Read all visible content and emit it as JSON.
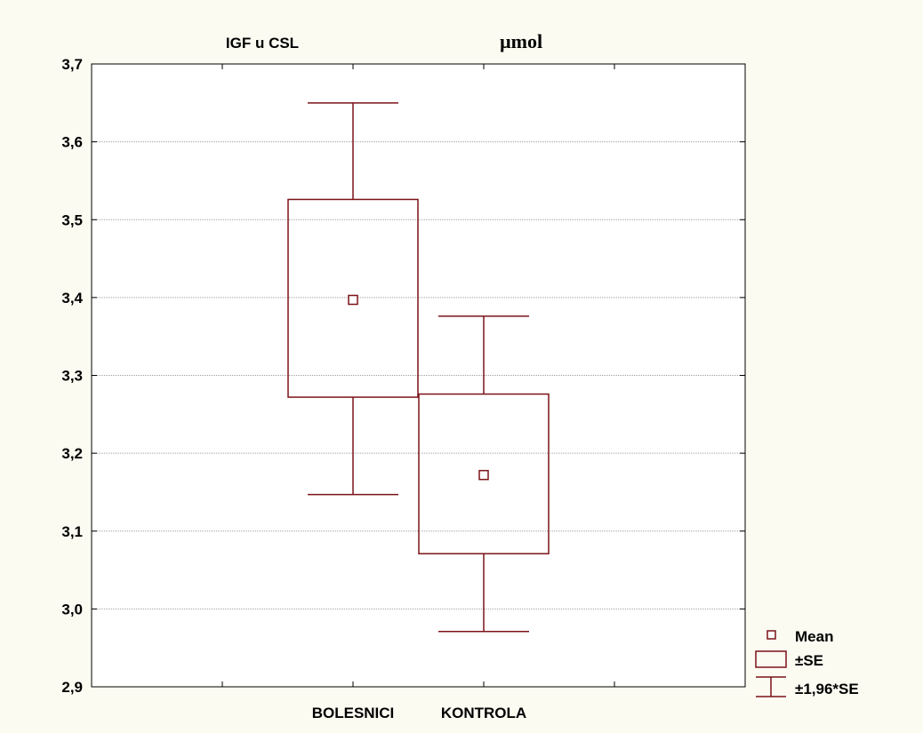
{
  "chart_data": {
    "type": "box",
    "title": "IGF u CSL",
    "unit_label": "µmol",
    "categories": [
      "BOLESNICI",
      "KONTROLA"
    ],
    "ylim": [
      2.9,
      3.7
    ],
    "y_ticks": [
      2.9,
      3.0,
      3.1,
      3.2,
      3.3,
      3.4,
      3.5,
      3.6,
      3.7
    ],
    "y_tick_labels": [
      "2,9",
      "3,0",
      "3,1",
      "3,2",
      "3,3",
      "3,4",
      "3,5",
      "3,6",
      "3,7"
    ],
    "grid": true,
    "series": [
      {
        "category": "BOLESNICI",
        "mean": 3.397,
        "se_low": 3.272,
        "se_high": 3.526,
        "ci_low": 3.147,
        "ci_high": 3.65
      },
      {
        "category": "KONTROLA",
        "mean": 3.172,
        "se_low": 3.071,
        "se_high": 3.276,
        "ci_low": 2.971,
        "ci_high": 3.376
      }
    ],
    "legend": {
      "position": "bottom-right",
      "items": [
        {
          "symbol": "mean-marker",
          "label": "Mean"
        },
        {
          "symbol": "box",
          "label": "±SE"
        },
        {
          "symbol": "whisker",
          "label": "±1,96*SE"
        }
      ]
    },
    "colors": {
      "series": "#7b1318",
      "grid": "#a0a0a0",
      "axis": "#000000",
      "background": "#fbfbf2",
      "plot_background": "#ffffff"
    }
  }
}
